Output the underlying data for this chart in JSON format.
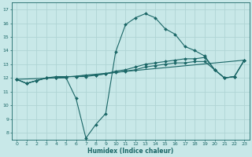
{
  "background_color": "#c8e8e8",
  "grid_color": "#b0d4d4",
  "line_color": "#1a6666",
  "xlabel": "Humidex (Indice chaleur)",
  "ylim": [
    7.5,
    17.5
  ],
  "xlim": [
    -0.5,
    23.5
  ],
  "yticks": [
    8,
    9,
    10,
    11,
    12,
    13,
    14,
    15,
    16,
    17
  ],
  "xticks": [
    0,
    1,
    2,
    3,
    4,
    5,
    6,
    7,
    8,
    9,
    10,
    11,
    12,
    13,
    14,
    15,
    16,
    17,
    18,
    19,
    20,
    21,
    22,
    23
  ],
  "line1_x": [
    0,
    1,
    2,
    3,
    4,
    5,
    6,
    7,
    8,
    9,
    10,
    11,
    12,
    13,
    14,
    15,
    16,
    17,
    18,
    19,
    20,
    21,
    22,
    23
  ],
  "line1_y": [
    11.9,
    11.6,
    11.8,
    12.0,
    12.0,
    12.0,
    10.5,
    7.6,
    8.6,
    9.4,
    13.9,
    15.9,
    16.4,
    16.7,
    16.4,
    15.6,
    15.2,
    14.3,
    14.0,
    13.6,
    12.6,
    12.0,
    12.1,
    13.3
  ],
  "line2_x": [
    0,
    1,
    2,
    3,
    4,
    5,
    6,
    7,
    8,
    9,
    10,
    11,
    12,
    13,
    14,
    15,
    16,
    17,
    18,
    19,
    20,
    21,
    22,
    23
  ],
  "line2_y": [
    11.9,
    11.6,
    11.8,
    12.0,
    12.1,
    12.1,
    12.1,
    12.2,
    12.2,
    12.3,
    12.5,
    12.6,
    12.8,
    13.0,
    13.1,
    13.2,
    13.3,
    13.4,
    13.4,
    13.5,
    12.6,
    12.0,
    12.1,
    13.3
  ],
  "line3_x": [
    0,
    1,
    2,
    3,
    4,
    5,
    6,
    7,
    8,
    9,
    10,
    11,
    12,
    13,
    14,
    15,
    16,
    17,
    18,
    19,
    20,
    21,
    22,
    23
  ],
  "line3_y": [
    11.9,
    11.6,
    11.8,
    12.0,
    12.0,
    12.1,
    12.1,
    12.1,
    12.2,
    12.3,
    12.4,
    12.5,
    12.6,
    12.8,
    12.9,
    13.0,
    13.1,
    13.1,
    13.2,
    13.2,
    12.6,
    12.0,
    12.1,
    13.3
  ],
  "line4_x": [
    0,
    4,
    23
  ],
  "line4_y": [
    11.9,
    12.0,
    13.3
  ]
}
